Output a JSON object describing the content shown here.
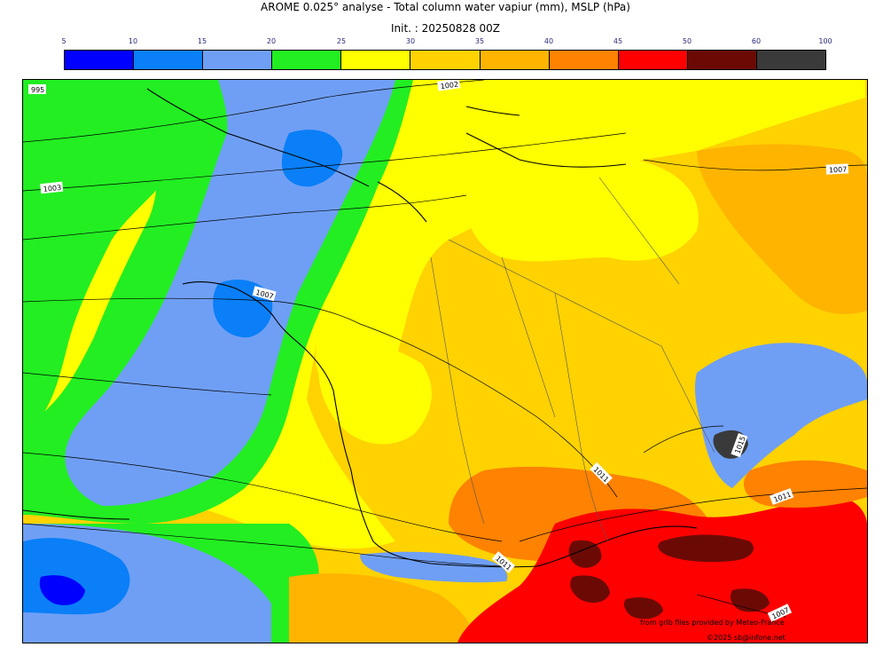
{
  "header": {
    "title": "AROME 0.025° analyse - Total column water vapiur (mm), MSLP (hPa)",
    "init": "Init. : 20250828 00Z"
  },
  "colorbar": {
    "ticks": [
      "5",
      "10",
      "15",
      "20",
      "25",
      "30",
      "35",
      "40",
      "45",
      "50",
      "60",
      "100"
    ],
    "colors": [
      "#0000ff",
      "#0a7ff7",
      "#6f9ff5",
      "#22ee22",
      "#ffff00",
      "#ffd200",
      "#ffb400",
      "#ff8200",
      "#ff0000",
      "#6b0a05",
      "#3a3a3a"
    ]
  },
  "isobars": [
    {
      "label": "995"
    },
    {
      "label": "1002"
    },
    {
      "label": "1003"
    },
    {
      "label": "1007"
    },
    {
      "label": "1007"
    },
    {
      "label": "1015"
    },
    {
      "label": "1011"
    },
    {
      "label": "1011"
    },
    {
      "label": "1011"
    },
    {
      "label": "1007"
    }
  ],
  "credits": {
    "source": "from grib files provided by Meteo-France",
    "copyright": "©2025 sb@infone.net"
  }
}
